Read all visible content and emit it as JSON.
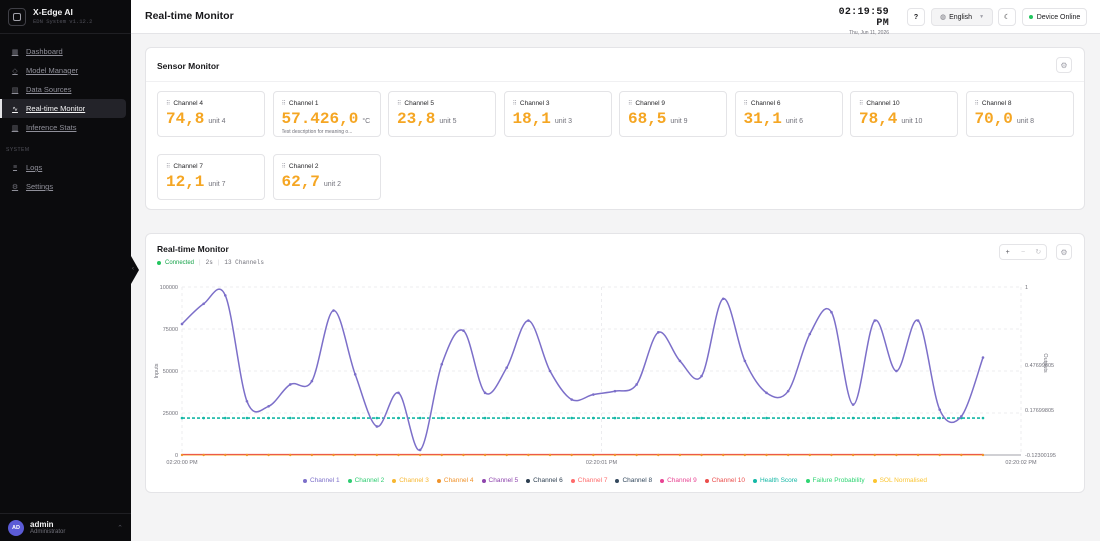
{
  "brand": {
    "title": "X-Edge AI",
    "subtitle": "EDN System v1.12.2"
  },
  "nav": [
    {
      "label": "Dashboard",
      "icon": "grid-icon",
      "name": "sidebar-item-dashboard"
    },
    {
      "label": "Model Manager",
      "icon": "cube-icon",
      "name": "sidebar-item-model-manager"
    },
    {
      "label": "Data Sources",
      "icon": "database-icon",
      "name": "sidebar-item-data-sources"
    },
    {
      "label": "Real-time Monitor",
      "icon": "activity-icon",
      "name": "sidebar-item-realtime-monitor",
      "active": true
    },
    {
      "label": "Inference Stats",
      "icon": "bar-chart-icon",
      "name": "sidebar-item-inference-stats"
    }
  ],
  "nav_section_system": "SYSTEM",
  "nav_system": [
    {
      "label": "Logs",
      "icon": "log-icon",
      "name": "sidebar-item-logs"
    },
    {
      "label": "Settings",
      "icon": "gear-icon",
      "name": "sidebar-item-settings"
    }
  ],
  "user": {
    "initials": "AD",
    "name": "admin",
    "role": "Administrator"
  },
  "header": {
    "title": "Real-time Monitor",
    "time": "02:19:59 PM",
    "date": "Thu, Jun 11, 2026",
    "help": "?",
    "language": "English",
    "device_status": "Device Online"
  },
  "sensor_monitor": {
    "title": "Sensor Monitor",
    "cards": [
      {
        "name": "Channel 4",
        "value": "74,8",
        "unit": "unit 4"
      },
      {
        "name": "Channel 1",
        "value": "57.426,0",
        "unit": "°C",
        "description": "Test description for meaning o..."
      },
      {
        "name": "Channel 5",
        "value": "23,8",
        "unit": "unit 5"
      },
      {
        "name": "Channel 3",
        "value": "18,1",
        "unit": "unit 3"
      },
      {
        "name": "Channel 9",
        "value": "68,5",
        "unit": "unit 9"
      },
      {
        "name": "Channel 6",
        "value": "31,1",
        "unit": "unit 6"
      },
      {
        "name": "Channel 10",
        "value": "78,4",
        "unit": "unit 10"
      },
      {
        "name": "Channel 8",
        "value": "70,0",
        "unit": "unit 8"
      },
      {
        "name": "Channel 7",
        "value": "12,1",
        "unit": "unit 7"
      },
      {
        "name": "Channel 2",
        "value": "62,7",
        "unit": "unit 2"
      }
    ]
  },
  "realtime": {
    "title": "Real-time Monitor",
    "status": "Connected",
    "interval": "2s",
    "channels": "13 Channels",
    "zoom_in": "+",
    "zoom_out": "−",
    "reset": "↻"
  },
  "chart_data": {
    "type": "line",
    "ylabel": "Inputs",
    "y2label": "Outputs",
    "ylim": [
      0,
      100000
    ],
    "y_ticks": [
      "0",
      "25000",
      "50000",
      "75000",
      "100000"
    ],
    "y2lim": [
      -0.12300195,
      1
    ],
    "y2_ticks": [
      "-0.12300195",
      "0.17699805",
      "0.47699805",
      "1"
    ],
    "x_ticks": [
      "02:20:00 PM",
      "02:20:01 PM",
      "02:20:02 PM"
    ],
    "grid": true,
    "legend_position": "bottom",
    "series": [
      {
        "name": "Channel 1",
        "color": "#7c6fc9",
        "axis": "left",
        "values": [
          78000,
          90000,
          95000,
          32000,
          29000,
          42000,
          44000,
          86000,
          48000,
          17000,
          37000,
          3000,
          54000,
          74000,
          37000,
          52000,
          80000,
          50000,
          33000,
          36000,
          38000,
          42000,
          73000,
          56000,
          47000,
          93000,
          56000,
          37000,
          38000,
          72000,
          85000,
          30000,
          80000,
          50000,
          80000,
          27000,
          23000,
          58000
        ]
      },
      {
        "name": "Channel 2",
        "color": "#2ecc71",
        "axis": "left",
        "values": []
      },
      {
        "name": "Channel 3",
        "color": "#f7b731",
        "axis": "left",
        "values": []
      },
      {
        "name": "Channel 4",
        "color": "#f0932b",
        "axis": "left",
        "values": []
      },
      {
        "name": "Channel 5",
        "color": "#8e44ad",
        "axis": "left",
        "values": []
      },
      {
        "name": "Channel 6",
        "color": "#2c3e50",
        "axis": "left",
        "values": []
      },
      {
        "name": "Channel 7",
        "color": "#ff6b6b",
        "axis": "left",
        "values": []
      },
      {
        "name": "Channel 8",
        "color": "#34495e",
        "axis": "left",
        "values": []
      },
      {
        "name": "Channel 9",
        "color": "#e84393",
        "axis": "left",
        "values": []
      },
      {
        "name": "Channel 10",
        "color": "#eb4d4b",
        "axis": "left",
        "values": []
      },
      {
        "name": "Health Score",
        "color": "#14b8a6",
        "axis": "left",
        "dashed": true,
        "values": []
      },
      {
        "name": "Failure Probability",
        "color": "#2ed573",
        "axis": "right",
        "values": []
      },
      {
        "name": "SOL Normalised",
        "color": "#fbc531",
        "axis": "right",
        "values": []
      }
    ],
    "baseline_value": 0,
    "health_value": 22000
  }
}
